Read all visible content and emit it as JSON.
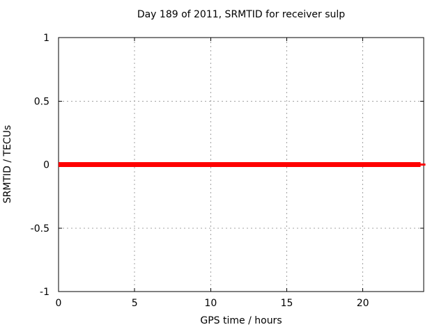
{
  "page": {
    "background": "#ffffff"
  },
  "chart_data": {
    "type": "line",
    "title": "Day 189 of 2011, SRMTID for receiver sulp",
    "xlabel": "GPS time / hours",
    "ylabel": "SRMTID / TECUs",
    "xlim": [
      0,
      24
    ],
    "ylim": [
      -1,
      1
    ],
    "xticks": [
      0,
      5,
      10,
      15,
      20
    ],
    "xtick_labels": [
      "0",
      "5",
      "10",
      "15",
      "20"
    ],
    "yticks": [
      -1,
      -0.5,
      0,
      0.5,
      1
    ],
    "ytick_labels": [
      "-1",
      "-0.5",
      "0",
      "0.5",
      "1"
    ],
    "grid": true,
    "legend": "none",
    "series": [
      {
        "name": "SRMTID",
        "color": "#ff0000",
        "style": "thick-line",
        "x": [
          0,
          23.8
        ],
        "y": [
          0,
          0
        ]
      }
    ],
    "colors": {
      "axis": "#000000",
      "grid": "#a0a0a0",
      "text": "#000000",
      "series": "#ff0000"
    }
  }
}
